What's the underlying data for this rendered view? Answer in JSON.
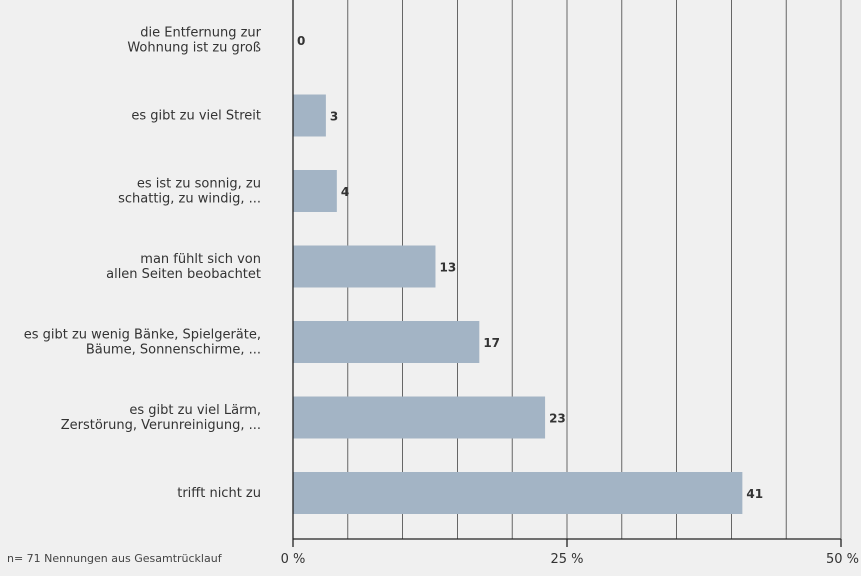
{
  "chart_data": {
    "type": "bar",
    "orientation": "horizontal",
    "categories": [
      [
        "die Entfernung zur",
        "Wohnung ist zu groß"
      ],
      [
        "es gibt zu viel Streit"
      ],
      [
        "es ist zu sonnig, zu",
        "schattig, zu windig, ..."
      ],
      [
        "man fühlt sich von",
        "allen Seiten beobachtet"
      ],
      [
        "es gibt zu wenig Bänke, Spielgeräte,",
        "Bäume, Sonnenschirme, ..."
      ],
      [
        "es gibt zu viel Lärm,",
        "Zerstörung, Verunreinigung, ..."
      ],
      [
        "trifft nicht zu"
      ]
    ],
    "values": [
      0,
      3,
      4,
      13,
      17,
      23,
      41
    ],
    "value_labels": [
      "0",
      "3",
      "4",
      "13",
      "17",
      "23",
      "41"
    ],
    "xlim": [
      0,
      50
    ],
    "xticks": [
      {
        "value": 0,
        "label": "0 %"
      },
      {
        "value": 25,
        "label": "25 %"
      },
      {
        "value": 50,
        "label": "50 %"
      }
    ],
    "gridlines_every": 5,
    "grid": true,
    "bar_color": "#a3b4c5",
    "gridline_color": "#444444",
    "footnote": "n= 71 Nennungen aus Gesamtrücklauf"
  }
}
